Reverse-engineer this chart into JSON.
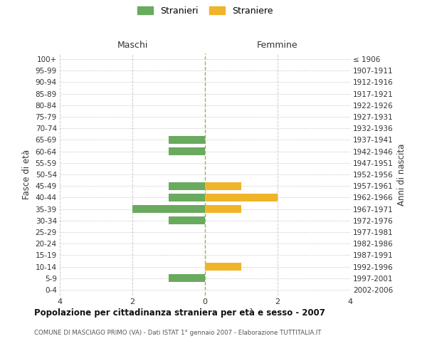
{
  "age_groups": [
    "100+",
    "95-99",
    "90-94",
    "85-89",
    "80-84",
    "75-79",
    "70-74",
    "65-69",
    "60-64",
    "55-59",
    "50-54",
    "45-49",
    "40-44",
    "35-39",
    "30-34",
    "25-29",
    "20-24",
    "15-19",
    "10-14",
    "5-9",
    "0-4"
  ],
  "birth_years": [
    "≤ 1906",
    "1907-1911",
    "1912-1916",
    "1917-1921",
    "1922-1926",
    "1927-1931",
    "1932-1936",
    "1937-1941",
    "1942-1946",
    "1947-1951",
    "1952-1956",
    "1957-1961",
    "1962-1966",
    "1967-1971",
    "1972-1976",
    "1977-1981",
    "1982-1986",
    "1987-1991",
    "1992-1996",
    "1997-2001",
    "2002-2006"
  ],
  "maschi": [
    0,
    0,
    0,
    0,
    0,
    0,
    0,
    -1,
    -1,
    0,
    0,
    -1,
    -1,
    -2,
    -1,
    0,
    0,
    0,
    0,
    -1,
    0
  ],
  "femmine": [
    0,
    0,
    0,
    0,
    0,
    0,
    0,
    0,
    0,
    0,
    0,
    1,
    2,
    1,
    0,
    0,
    0,
    0,
    1,
    0,
    0
  ],
  "color_maschi": "#6aaa5e",
  "color_femmine": "#f0b429",
  "xlim": 4,
  "title_main": "Popolazione per cittadinanza straniera per età e sesso - 2007",
  "title_sub": "COMUNE DI MASCIAGO PRIMO (VA) - Dati ISTAT 1° gennaio 2007 - Elaborazione TUTTITALIA.IT",
  "ylabel_left": "Fasce di età",
  "ylabel_right": "Anni di nascita",
  "header_left": "Maschi",
  "header_right": "Femmine",
  "legend_maschi": "Stranieri",
  "legend_femmine": "Straniere",
  "bar_height": 0.7,
  "grid_color": "#cccccc",
  "background_color": "#ffffff",
  "centerline_color": "#aaa855"
}
